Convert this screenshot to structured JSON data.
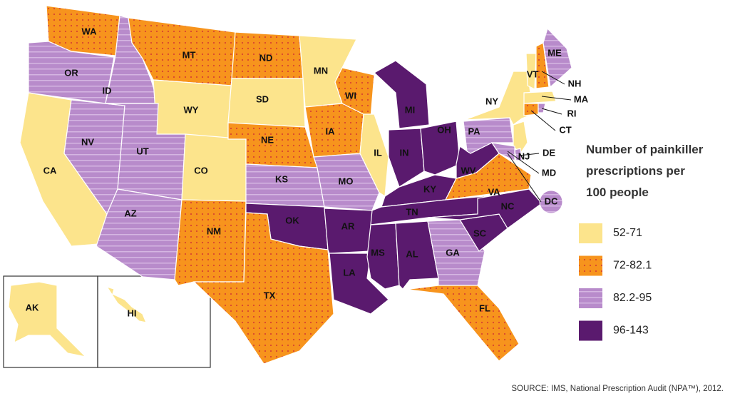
{
  "legend": {
    "title_lines": [
      "Number of painkiller",
      "prescriptions per",
      "100 people"
    ],
    "items": [
      {
        "label": "52-71",
        "color": "#fce48c"
      },
      {
        "label": "72-82.1",
        "color": "#f7941d",
        "pattern": "dots"
      },
      {
        "label": "82.2-95",
        "color": "#b88bcb",
        "pattern": "stripes"
      },
      {
        "label": "96-143",
        "color": "#5a1a6e"
      }
    ]
  },
  "states": [
    {
      "label": "WA",
      "color": "#f7941d"
    },
    {
      "label": "OR",
      "color": "#b88bcb"
    },
    {
      "label": "CA",
      "color": "#fce48c"
    },
    {
      "label": "ID",
      "color": "#b88bcb"
    },
    {
      "label": "NV",
      "color": "#b88bcb"
    },
    {
      "label": "MT",
      "color": "#f7941d"
    },
    {
      "label": "WY",
      "color": "#fce48c"
    },
    {
      "label": "UT",
      "color": "#b88bcb"
    },
    {
      "label": "AZ",
      "color": "#b88bcb"
    },
    {
      "label": "CO",
      "color": "#fce48c"
    },
    {
      "label": "NM",
      "color": "#f7941d"
    },
    {
      "label": "ND",
      "color": "#f7941d"
    },
    {
      "label": "SD",
      "color": "#fce48c"
    },
    {
      "label": "NE",
      "color": "#f7941d"
    },
    {
      "label": "KS",
      "color": "#b88bcb"
    },
    {
      "label": "OK",
      "color": "#5a1a6e"
    },
    {
      "label": "TX",
      "color": "#f7941d"
    },
    {
      "label": "MN",
      "color": "#fce48c"
    },
    {
      "label": "IA",
      "color": "#f7941d"
    },
    {
      "label": "MO",
      "color": "#b88bcb"
    },
    {
      "label": "AR",
      "color": "#5a1a6e"
    },
    {
      "label": "LA",
      "color": "#5a1a6e"
    },
    {
      "label": "WI",
      "color": "#f7941d"
    },
    {
      "label": "IL",
      "color": "#fce48c"
    },
    {
      "label": "MI",
      "color": "#5a1a6e"
    },
    {
      "label": "IN",
      "color": "#5a1a6e"
    },
    {
      "label": "OH",
      "color": "#5a1a6e"
    },
    {
      "label": "KY",
      "color": "#5a1a6e"
    },
    {
      "label": "TN",
      "color": "#5a1a6e"
    },
    {
      "label": "MS",
      "color": "#5a1a6e"
    },
    {
      "label": "AL",
      "color": "#5a1a6e"
    },
    {
      "label": "GA",
      "color": "#b88bcb"
    },
    {
      "label": "FL",
      "color": "#f7941d"
    },
    {
      "label": "SC",
      "color": "#5a1a6e"
    },
    {
      "label": "NC",
      "color": "#5a1a6e"
    },
    {
      "label": "VA",
      "color": "#f7941d"
    },
    {
      "label": "WV",
      "color": "#5a1a6e"
    },
    {
      "label": "PA",
      "color": "#b88bcb"
    },
    {
      "label": "NY",
      "color": "#fce48c"
    },
    {
      "label": "VT",
      "color": "#fce48c"
    },
    {
      "label": "NH",
      "color": "#f7941d"
    },
    {
      "label": "ME",
      "color": "#b88bcb"
    },
    {
      "label": "MA",
      "color": "#fce48c"
    },
    {
      "label": "CT",
      "color": "#f7941d"
    },
    {
      "label": "RI",
      "color": "#b88bcb"
    },
    {
      "label": "NJ",
      "color": "#fce48c"
    },
    {
      "label": "DE",
      "color": "#b88bcb"
    },
    {
      "label": "MD",
      "color": "#b88bcb"
    },
    {
      "label": "DC",
      "color": "#b88bcb"
    },
    {
      "label": "AK",
      "color": "#fce48c"
    },
    {
      "label": "HI",
      "color": "#fce48c"
    }
  ],
  "source": "SOURCE: IMS, National Prescription Audit (NPA™), 2012."
}
